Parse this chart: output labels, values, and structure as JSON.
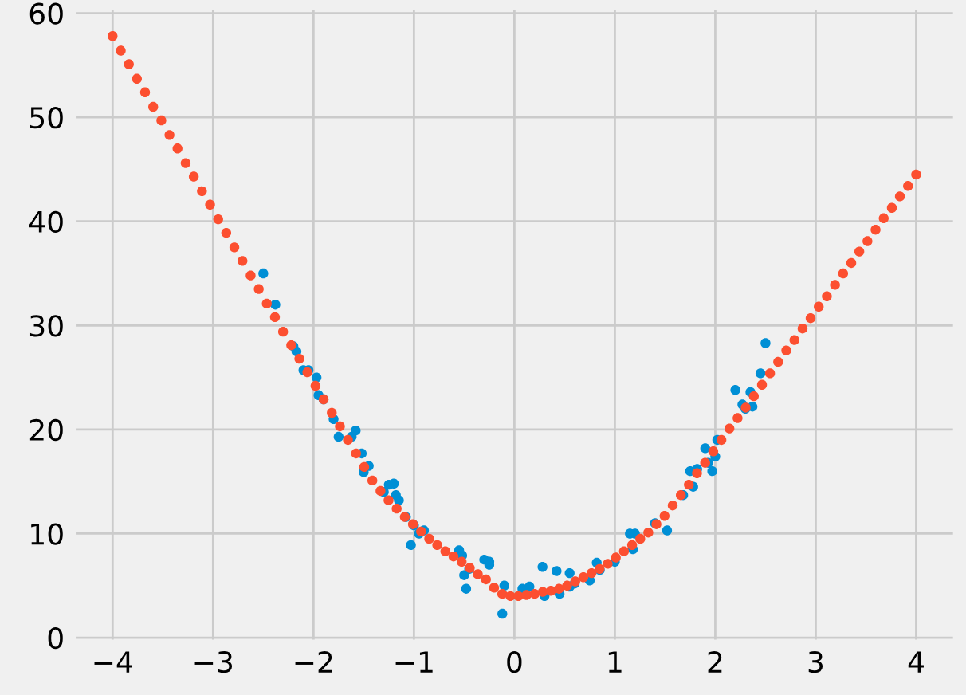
{
  "chart_data": {
    "type": "scatter",
    "xlim": [
      -4.4,
      4.4
    ],
    "ylim": [
      -0.5,
      60.6
    ],
    "xticks": [
      {
        "value": -4,
        "label": "−4"
      },
      {
        "value": -3,
        "label": "−3"
      },
      {
        "value": -2,
        "label": "−2"
      },
      {
        "value": -1,
        "label": "−1"
      },
      0,
      1,
      2,
      3,
      4
    ],
    "yticks": [
      0,
      10,
      20,
      30,
      40,
      50,
      60
    ],
    "grid": true,
    "marker": "circle",
    "series": [
      {
        "color": "#008fd5",
        "x": [
          -2.5,
          -2.38,
          -2.2,
          -2.17,
          -2.1,
          -2.05,
          -1.97,
          -1.95,
          -1.9,
          -1.8,
          -1.75,
          -1.62,
          -1.58,
          -1.52,
          -1.5,
          -1.45,
          -1.3,
          -1.25,
          -1.2,
          -1.18,
          -1.15,
          -1.08,
          -1.03,
          -1.0,
          -0.95,
          -0.9,
          -0.55,
          -0.52,
          -0.5,
          -0.48,
          -0.45,
          -0.3,
          -0.25,
          -0.25,
          -0.12,
          -0.1,
          0.08,
          0.15,
          0.28,
          0.3,
          0.42,
          0.45,
          0.55,
          0.55,
          0.6,
          0.75,
          0.82,
          0.85,
          1.0,
          1.15,
          1.18,
          1.2,
          1.4,
          1.52,
          1.68,
          1.75,
          1.78,
          1.82,
          1.9,
          1.93,
          1.97,
          2.0,
          2.02,
          2.2,
          2.27,
          2.3,
          2.35,
          2.37,
          2.45,
          2.5
        ],
        "values": [
          35,
          32,
          28,
          27.5,
          25.7,
          25.7,
          25,
          23.3,
          22.9,
          21,
          19.3,
          19.3,
          19.9,
          17.7,
          15.9,
          16.5,
          14,
          14.7,
          14.8,
          13.7,
          13.2,
          11.6,
          8.9,
          10.8,
          10,
          10.3,
          8.4,
          7.9,
          6,
          4.7,
          6.6,
          7.5,
          7.3,
          7.0,
          2.3,
          5.0,
          4.7,
          4.9,
          6.8,
          4.0,
          6.4,
          4.2,
          6.2,
          4.9,
          5.2,
          5.5,
          7.2,
          6.5,
          7.3,
          10,
          8.5,
          10,
          11,
          10.3,
          13.7,
          16,
          14.5,
          16.2,
          18.2,
          16.8,
          16,
          17.4,
          19,
          23.8,
          22.4,
          22,
          23.6,
          22.2,
          25.4,
          28.3
        ]
      },
      {
        "color": "#fc4f30",
        "x": [
          -4.0,
          -3.919,
          -3.838,
          -3.758,
          -3.677,
          -3.596,
          -3.515,
          -3.434,
          -3.354,
          -3.273,
          -3.192,
          -3.111,
          -3.03,
          -2.949,
          -2.869,
          -2.788,
          -2.707,
          -2.626,
          -2.545,
          -2.465,
          -2.384,
          -2.303,
          -2.222,
          -2.141,
          -2.061,
          -1.98,
          -1.899,
          -1.818,
          -1.737,
          -1.657,
          -1.576,
          -1.495,
          -1.414,
          -1.333,
          -1.253,
          -1.172,
          -1.091,
          -1.01,
          -0.929,
          -0.848,
          -0.768,
          -0.687,
          -0.606,
          -0.525,
          -0.444,
          -0.364,
          -0.283,
          -0.202,
          -0.121,
          -0.04,
          0.04,
          0.121,
          0.202,
          0.283,
          0.364,
          0.444,
          0.525,
          0.606,
          0.687,
          0.768,
          0.848,
          0.929,
          1.01,
          1.091,
          1.172,
          1.253,
          1.333,
          1.414,
          1.495,
          1.576,
          1.657,
          1.737,
          1.818,
          1.899,
          1.98,
          2.061,
          2.141,
          2.222,
          2.303,
          2.384,
          2.465,
          2.545,
          2.626,
          2.707,
          2.788,
          2.869,
          2.949,
          3.03,
          3.111,
          3.192,
          3.273,
          3.354,
          3.434,
          3.515,
          3.596,
          3.677,
          3.758,
          3.838,
          3.919,
          4.0
        ],
        "values": [
          57.8,
          56.4,
          55.1,
          53.7,
          52.4,
          51.0,
          49.7,
          48.3,
          47.0,
          45.6,
          44.3,
          42.9,
          41.6,
          40.2,
          38.9,
          37.5,
          36.2,
          34.8,
          33.5,
          32.1,
          30.8,
          29.4,
          28.1,
          26.8,
          25.5,
          24.2,
          22.9,
          21.6,
          20.3,
          19.0,
          17.7,
          16.4,
          15.1,
          14.1,
          13.2,
          12.4,
          11.6,
          10.9,
          10.2,
          9.5,
          8.9,
          8.3,
          7.8,
          7.3,
          6.7,
          6.1,
          5.6,
          4.8,
          4.2,
          4.0,
          4.0,
          4.1,
          4.2,
          4.4,
          4.5,
          4.7,
          5.0,
          5.4,
          5.8,
          6.2,
          6.6,
          7.1,
          7.7,
          8.3,
          8.9,
          9.5,
          10.1,
          10.9,
          11.7,
          12.7,
          13.7,
          14.7,
          15.8,
          16.8,
          17.9,
          19.0,
          20.1,
          21.1,
          22.1,
          23.2,
          24.3,
          25.4,
          26.5,
          27.6,
          28.6,
          29.7,
          30.7,
          31.8,
          32.8,
          33.9,
          35.0,
          36.0,
          37.1,
          38.1,
          39.2,
          40.3,
          41.3,
          42.4,
          43.4,
          44.5
        ]
      }
    ]
  }
}
